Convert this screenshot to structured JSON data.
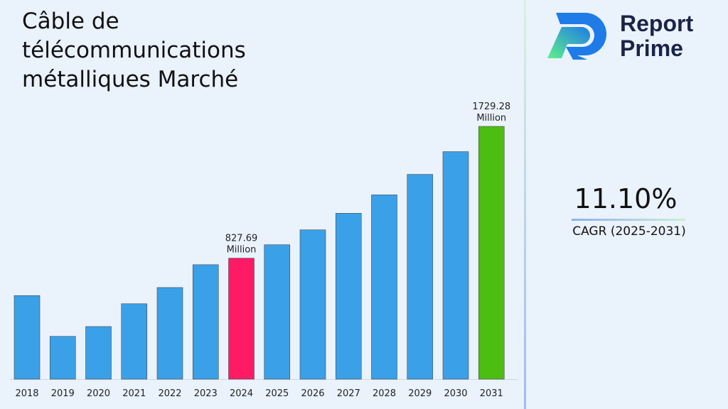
{
  "chart_data": {
    "type": "bar",
    "title": "Câble de télécommunications métalliques Marché",
    "categories": [
      "2018",
      "2019",
      "2020",
      "2021",
      "2022",
      "2023",
      "2024",
      "2025",
      "2026",
      "2027",
      "2028",
      "2029",
      "2030",
      "2031"
    ],
    "values": [
      572,
      293,
      360,
      516,
      627,
      783,
      827.69,
      919.6,
      1021.6,
      1135.0,
      1261.0,
      1401.0,
      1556.6,
      1729.28
    ],
    "data_labels": {
      "2024": "827.69 Million",
      "2031": "1729.28 Million"
    },
    "label_2024": [
      "827.69",
      "Million"
    ],
    "label_2031": [
      "1729.28",
      "Million"
    ],
    "xlabel": "",
    "ylabel": "",
    "ylim": [
      0,
      1729.28
    ],
    "grid": false,
    "colors": {
      "default": "#3aa0e8",
      "highlight_2024": "#ff1a66",
      "highlight_2031": "#4cbe12"
    }
  },
  "brand": {
    "line1": "Report",
    "line2": "Prime"
  },
  "cagr": {
    "value": "11.10%",
    "label": "CAGR (2025-2031)"
  }
}
